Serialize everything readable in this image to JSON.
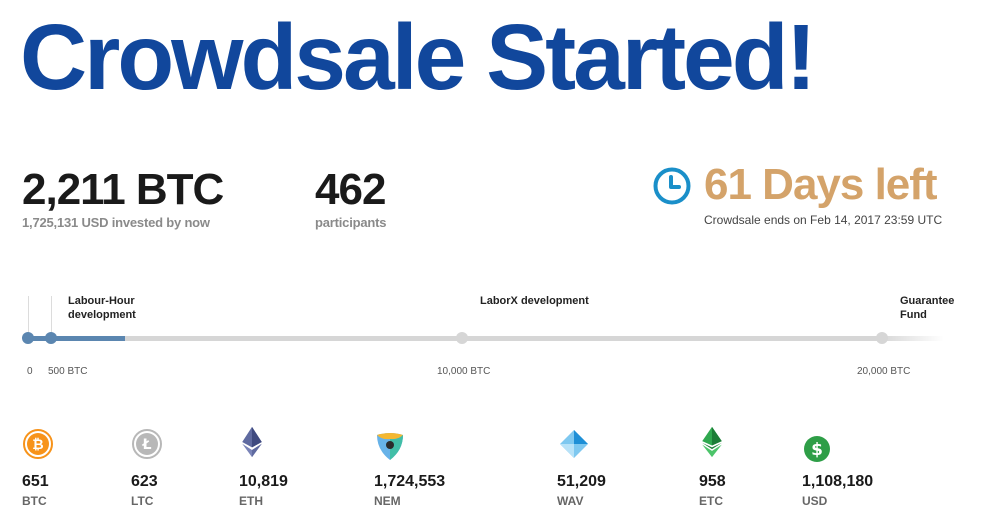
{
  "page": {
    "title": "Crowdsale Started!"
  },
  "stats": {
    "btc_total": "2,211 BTC",
    "usd_invested": "1,725,131 USD invested by now",
    "participants_count": "462",
    "participants_label": "participants"
  },
  "countdown": {
    "days_left": "61 Days left",
    "ends_text": "Crowdsale ends on Feb 14, 2017 23:59 UTC"
  },
  "timeline": {
    "progress_btc": 2211,
    "max_btc": 20000,
    "milestones": [
      {
        "label": "",
        "amount": "0"
      },
      {
        "label": "Labour-Hour development",
        "amount": "500 BTC"
      },
      {
        "label": "LaborX development",
        "amount": "10,000 BTC"
      },
      {
        "label": "Guarantee Fund",
        "amount": "20,000 BTC"
      }
    ]
  },
  "currencies": [
    {
      "icon": "bitcoin-icon",
      "value": "651",
      "code": "BTC"
    },
    {
      "icon": "litecoin-icon",
      "value": "623",
      "code": "LTC"
    },
    {
      "icon": "ethereum-icon",
      "value": "10,819",
      "code": "ETH"
    },
    {
      "icon": "nem-icon",
      "value": "1,724,553",
      "code": "NEM"
    },
    {
      "icon": "waves-icon",
      "value": "51,209",
      "code": "WAV"
    },
    {
      "icon": "ethereum-classic-icon",
      "value": "958",
      "code": "ETC"
    },
    {
      "icon": "dollar-icon",
      "value": "1,108,180",
      "code": "USD"
    }
  ],
  "colors": {
    "title": "#11479c",
    "accent_gold": "#d4a36a",
    "clock_blue": "#1a8fc9",
    "progress": "#5b86b0",
    "track": "#d6d6d6",
    "bitcoin": "#f7931a",
    "litecoin": "#b8b8b8",
    "ethereum": "#5f6aa0",
    "etc": "#2fa84f",
    "usd": "#2e9e47"
  }
}
